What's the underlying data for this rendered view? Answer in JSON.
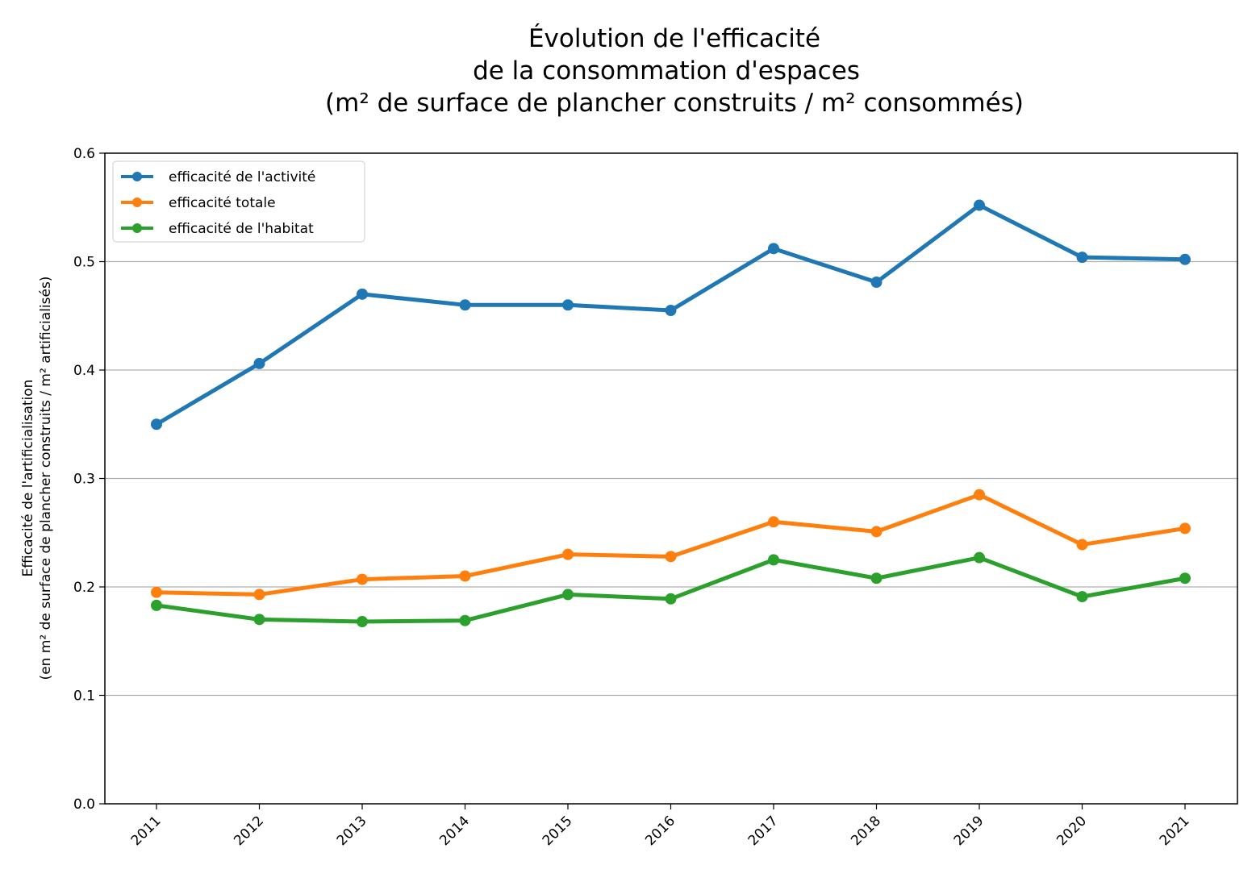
{
  "chart_data": {
    "type": "line",
    "title_lines": [
      "Évolution de l'efficacité",
      "de la consommation d'espaces",
      "(m² de surface de plancher construits / m² consommés)"
    ],
    "xlabel": "",
    "ylabel_lines": [
      "Efficacité de l'artificialisation",
      "(en m² de surface de plancher construits / m² artificialisés)"
    ],
    "categories": [
      "2011",
      "2012",
      "2013",
      "2014",
      "2015",
      "2016",
      "2017",
      "2018",
      "2019",
      "2020",
      "2021"
    ],
    "ylim": [
      0,
      0.6
    ],
    "yticks": [
      0.0,
      0.1,
      0.2,
      0.3,
      0.4,
      0.5,
      0.6
    ],
    "ytick_labels": [
      "0.0",
      "0.1",
      "0.2",
      "0.3",
      "0.4",
      "0.5",
      "0.6"
    ],
    "grid": "horizontal",
    "legend_position": "top-left",
    "series": [
      {
        "name": "efficacité de l'activité",
        "color": "#1f77b4",
        "values": [
          0.35,
          0.406,
          0.47,
          0.46,
          0.46,
          0.455,
          0.512,
          0.481,
          0.552,
          0.504,
          0.502
        ]
      },
      {
        "name": "efficacité totale",
        "color": "#ff7f0e",
        "values": [
          0.195,
          0.193,
          0.207,
          0.21,
          0.23,
          0.228,
          0.26,
          0.251,
          0.285,
          0.239,
          0.254
        ]
      },
      {
        "name": "efficacité de l'habitat",
        "color": "#2ca02c",
        "values": [
          0.183,
          0.17,
          0.168,
          0.169,
          0.193,
          0.189,
          0.225,
          0.208,
          0.227,
          0.191,
          0.208
        ]
      }
    ]
  }
}
